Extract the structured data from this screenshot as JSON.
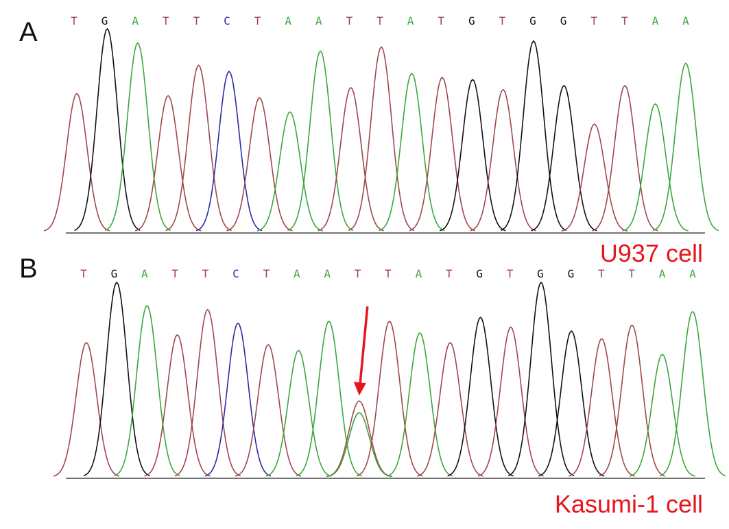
{
  "colors": {
    "T": "#a0474a",
    "G": "#111111",
    "A": "#3ca63c",
    "C": "#2a2aa8",
    "annotation": "#e8141b"
  },
  "panels": [
    {
      "letter": "A",
      "cell_label": "U937 cell",
      "bases": [
        "T",
        "G",
        "A",
        "T",
        "T",
        "C",
        "T",
        "A",
        "A",
        "T",
        "T",
        "A",
        "T",
        "G",
        "T",
        "G",
        "G",
        "T",
        "T",
        "A",
        "A"
      ],
      "peaks": [
        {
          "base": "T",
          "h": 0.68
        },
        {
          "base": "G",
          "h": 1.0
        },
        {
          "base": "A",
          "h": 0.93
        },
        {
          "base": "T",
          "h": 0.67
        },
        {
          "base": "T",
          "h": 0.82
        },
        {
          "base": "C",
          "h": 0.79
        },
        {
          "base": "T",
          "h": 0.66
        },
        {
          "base": "A",
          "h": 0.59
        },
        {
          "base": "A",
          "h": 0.89
        },
        {
          "base": "T",
          "h": 0.71
        },
        {
          "base": "T",
          "h": 0.91
        },
        {
          "base": "A",
          "h": 0.78
        },
        {
          "base": "T",
          "h": 0.76
        },
        {
          "base": "G",
          "h": 0.75
        },
        {
          "base": "T",
          "h": 0.7
        },
        {
          "base": "G",
          "h": 0.94
        },
        {
          "base": "G",
          "h": 0.72
        },
        {
          "base": "T",
          "h": 0.53
        },
        {
          "base": "T",
          "h": 0.72
        },
        {
          "base": "A",
          "h": 0.63
        },
        {
          "base": "A",
          "h": 0.83
        }
      ]
    },
    {
      "letter": "B",
      "cell_label": "Kasumi-1 cell",
      "bases": [
        "T",
        "G",
        "A",
        "T",
        "T",
        "C",
        "T",
        "A",
        "A",
        "T",
        "T",
        "A",
        "T",
        "G",
        "T",
        "G",
        "G",
        "T",
        "T",
        "A",
        "A"
      ],
      "peaks": [
        {
          "base": "T",
          "h": 0.69
        },
        {
          "base": "G",
          "h": 1.0
        },
        {
          "base": "A",
          "h": 0.88
        },
        {
          "base": "T",
          "h": 0.73
        },
        {
          "base": "T",
          "h": 0.86
        },
        {
          "base": "C",
          "h": 0.79
        },
        {
          "base": "T",
          "h": 0.68
        },
        {
          "base": "A",
          "h": 0.65
        },
        {
          "base": "A",
          "h": 0.8
        },
        {
          "base": "T",
          "h": 0.39,
          "dual": "A",
          "dual_h": 0.33
        },
        {
          "base": "T",
          "h": 0.8
        },
        {
          "base": "A",
          "h": 0.74
        },
        {
          "base": "T",
          "h": 0.69
        },
        {
          "base": "G",
          "h": 0.82
        },
        {
          "base": "T",
          "h": 0.77
        },
        {
          "base": "G",
          "h": 1.0
        },
        {
          "base": "G",
          "h": 0.75
        },
        {
          "base": "T",
          "h": 0.71
        },
        {
          "base": "T",
          "h": 0.78
        },
        {
          "base": "A",
          "h": 0.63
        },
        {
          "base": "A",
          "h": 0.85
        }
      ],
      "arrow_at_peak": 9
    }
  ]
}
